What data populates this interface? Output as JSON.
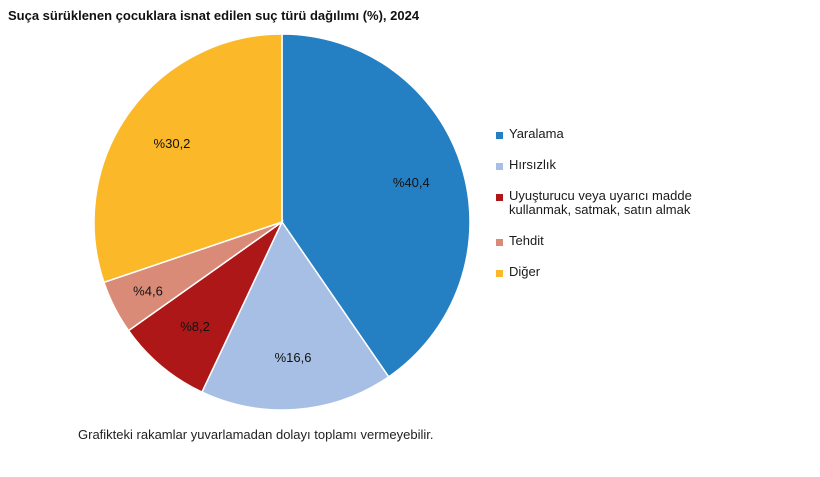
{
  "chart_data": {
    "type": "pie",
    "title": "Suça sürüklenen çocuklara isnat edilen suç türü dağılımı (%), 2024",
    "slices": [
      {
        "label": "Yaralama",
        "value": 40.4,
        "display": "%40,4",
        "color": "#2580C3"
      },
      {
        "label": "Hırsızlık",
        "value": 16.6,
        "display": "%16,6",
        "color": "#A7BFE4"
      },
      {
        "label": "Uyuşturucu veya uyarıcı madde kullanmak, satmak, satın almak",
        "value": 8.2,
        "display": "%8,2",
        "color": "#AE1717"
      },
      {
        "label": "Tehdit",
        "value": 4.6,
        "display": "%4,6",
        "color": "#D98B77"
      },
      {
        "label": "Diğer",
        "value": 30.2,
        "display": "%30,2",
        "color": "#FBB829"
      }
    ],
    "legend_position": "right",
    "start_angle": "top",
    "direction": "clockwise"
  },
  "note": "Grafikteki rakamlar yuvarlamadan dolayı toplamı vermeyebilir."
}
